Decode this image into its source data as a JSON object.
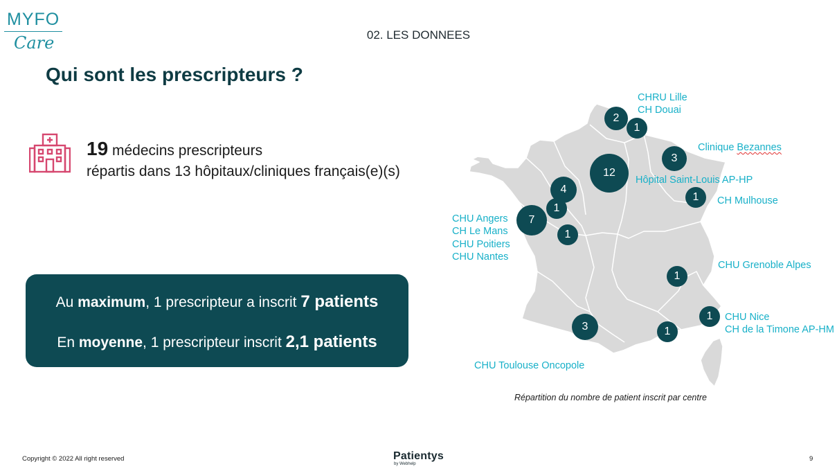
{
  "logo": {
    "top": "MYFO",
    "bottom": "Care"
  },
  "section_label": "02. LES DONNEES",
  "title": "Qui sont les prescripteurs ?",
  "stat": {
    "number": "19",
    "line1_rest": "médecins prescripteurs",
    "line2": "répartis dans 13 hôpitaux/cliniques français(e)(s)"
  },
  "summary": {
    "max_pre": "Au ",
    "max_bold": "maximum",
    "max_mid": ", 1 prescripteur a inscrit ",
    "max_value": "7 patients",
    "avg_pre": "En ",
    "avg_bold": "moyenne",
    "avg_mid": ", 1 prescripteur inscrit ",
    "avg_value": "2,1 patients"
  },
  "map": {
    "bubbles": [
      "2",
      "1",
      "3",
      "12",
      "4",
      "1",
      "7",
      "1",
      "1",
      "1",
      "1",
      "3",
      "1"
    ],
    "labels": {
      "lille": "CHRU Lille",
      "douai": "CH Douai",
      "bezannes_pre": "Clinique ",
      "bezannes_word": "Bezannes",
      "saint_louis": "Hôpital Saint-Louis AP-HP",
      "mulhouse": "CH Mulhouse",
      "angers": "CHU Angers",
      "le_mans": "CH Le Mans",
      "poitiers": "CHU Poitiers",
      "nantes": "CHU Nantes",
      "grenoble": "CHU Grenoble Alpes",
      "nice": "CHU Nice",
      "timone": "CH de la Timone AP-HM",
      "toulouse": "CHU Toulouse Oncopole"
    },
    "caption": "Répartition du nombre de patient inscrit par centre"
  },
  "footer": {
    "copyright": "Copyright © 2022 All right reserved",
    "brand": "Patientys",
    "brand_sub": "by Webhelp",
    "page": "9"
  },
  "colors": {
    "dark_teal": "#0e4a53",
    "cyan_label": "#17b0c8",
    "map_fill": "#d9d9d9",
    "icon_pink": "#d6476f"
  }
}
